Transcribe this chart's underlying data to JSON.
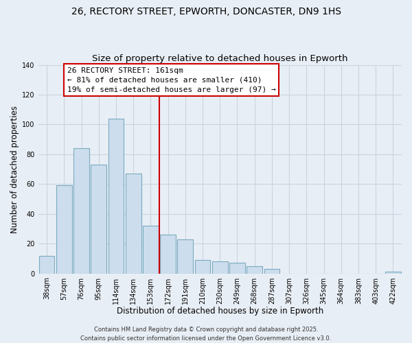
{
  "title": "26, RECTORY STREET, EPWORTH, DONCASTER, DN9 1HS",
  "subtitle": "Size of property relative to detached houses in Epworth",
  "xlabel": "Distribution of detached houses by size in Epworth",
  "ylabel": "Number of detached properties",
  "categories": [
    "38sqm",
    "57sqm",
    "76sqm",
    "95sqm",
    "114sqm",
    "134sqm",
    "153sqm",
    "172sqm",
    "191sqm",
    "210sqm",
    "230sqm",
    "249sqm",
    "268sqm",
    "287sqm",
    "307sqm",
    "326sqm",
    "345sqm",
    "364sqm",
    "383sqm",
    "403sqm",
    "422sqm"
  ],
  "values": [
    12,
    59,
    84,
    73,
    104,
    67,
    32,
    26,
    23,
    9,
    8,
    7,
    5,
    3,
    0,
    0,
    0,
    0,
    0,
    0,
    1
  ],
  "bar_color": "#ccdded",
  "bar_edge_color": "#7aaabf",
  "vline_color": "#cc0000",
  "annotation_title": "26 RECTORY STREET: 161sqm",
  "annotation_line1": "← 81% of detached houses are smaller (410)",
  "annotation_line2": "19% of semi-detached houses are larger (97) →",
  "annotation_box_color": "#ffffff",
  "annotation_box_edge": "#cc0000",
  "ylim": [
    0,
    140
  ],
  "footer1": "Contains HM Land Registry data © Crown copyright and database right 2025.",
  "footer2": "Contains public sector information licensed under the Open Government Licence v3.0.",
  "background_color": "#e8eef5",
  "grid_color": "#c8d4e0",
  "title_fontsize": 10,
  "axis_label_fontsize": 8.5,
  "tick_fontsize": 7,
  "footer_fontsize": 6,
  "annotation_fontsize": 8,
  "vline_index": 6.5
}
